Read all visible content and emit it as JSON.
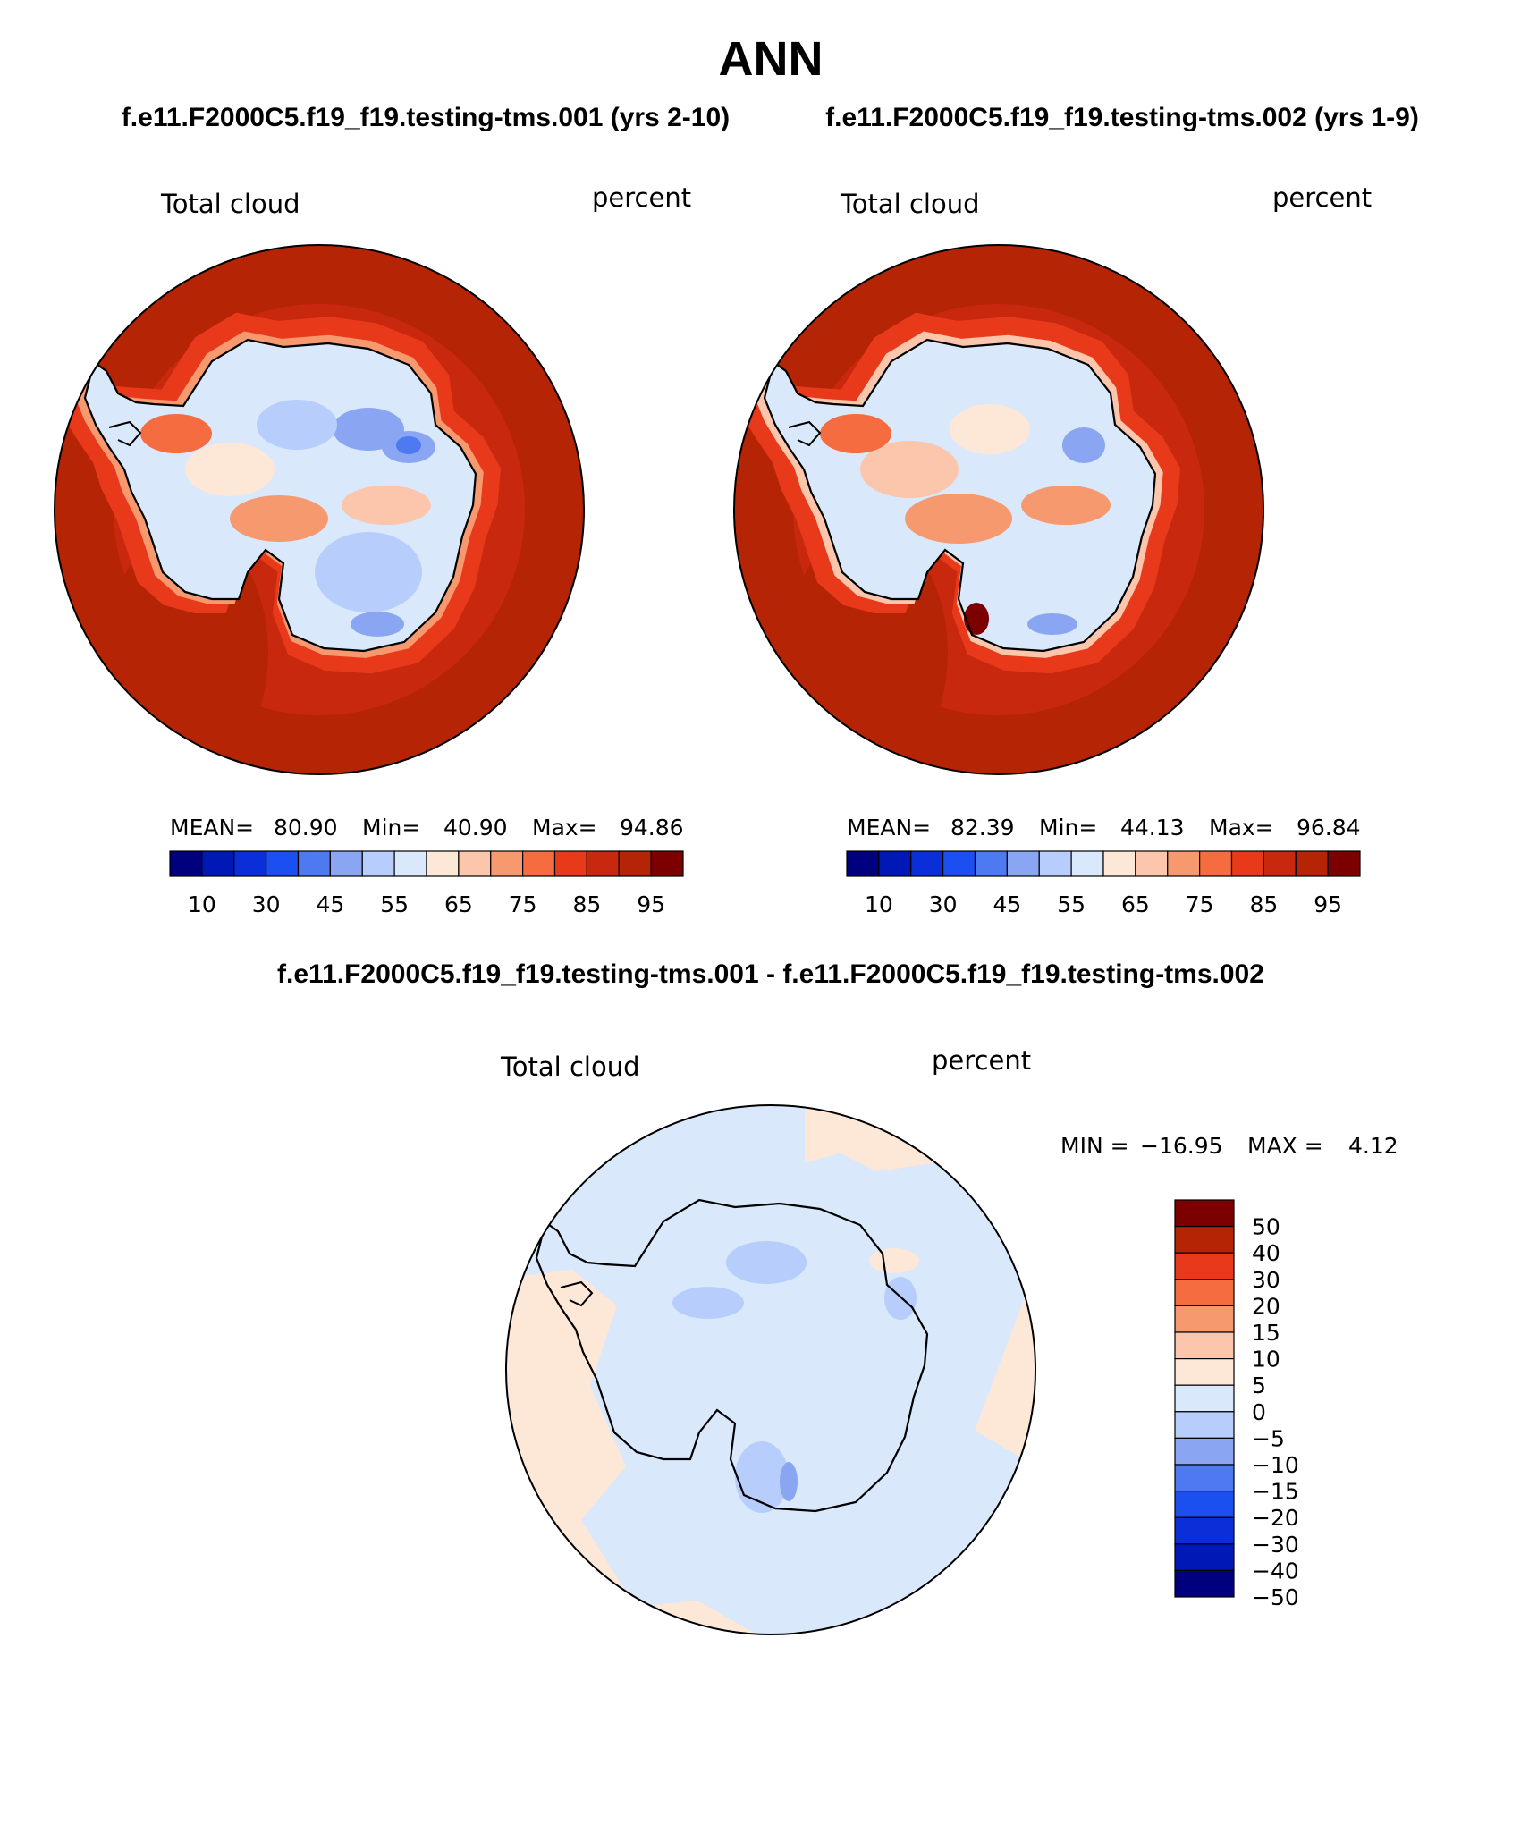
{
  "figure": {
    "title": "ANN",
    "left_case": "f.e11.F2000C5.f19_f19.testing-tms.001 (yrs 2-10)",
    "right_case": "f.e11.F2000C5.f19_f19.testing-tms.002 (yrs 1-9)",
    "diff_title": "f.e11.F2000C5.f19_f19.testing-tms.001 - f.e11.F2000C5.f19_f19.testing-tms.002"
  },
  "chart_data": [
    {
      "type": "heatmap",
      "projection": "south-polar-stereographic",
      "variable": "Total cloud",
      "units": "percent",
      "stats": {
        "mean_label": "MEAN=",
        "mean": "80.90",
        "min_label": "Min=",
        "min": "40.90",
        "max_label": "Max=",
        "max": "94.86"
      },
      "levels": [
        10,
        20,
        30,
        40,
        45,
        50,
        55,
        60,
        65,
        70,
        75,
        80,
        85,
        90,
        95
      ],
      "level_labels": [
        "10",
        "30",
        "45",
        "55",
        "65",
        "75",
        "85",
        "95"
      ],
      "colors": [
        "#00007f",
        "#0018b5",
        "#0a2ed8",
        "#1c4ff0",
        "#4d7af0",
        "#8aa6f3",
        "#b7cdfb",
        "#d9e8fb",
        "#fde8d8",
        "#fcc6ac",
        "#f7996f",
        "#f46c3f",
        "#e8391b",
        "#c8280d",
        "#b52404",
        "#7d0000"
      ],
      "ocean_color": "#c8280d",
      "ring_color": "#b52404",
      "coast_color": "#e8391b",
      "interior_color": "#d9e8fb"
    },
    {
      "type": "heatmap",
      "projection": "south-polar-stereographic",
      "variable": "Total cloud",
      "units": "percent",
      "stats": {
        "mean_label": "MEAN=",
        "mean": "82.39",
        "min_label": "Min=",
        "min": "44.13",
        "max_label": "Max=",
        "max": "96.84"
      },
      "levels": [
        10,
        20,
        30,
        40,
        45,
        50,
        55,
        60,
        65,
        70,
        75,
        80,
        85,
        90,
        95
      ],
      "level_labels": [
        "10",
        "30",
        "45",
        "55",
        "65",
        "75",
        "85",
        "95"
      ],
      "colors": [
        "#00007f",
        "#0018b5",
        "#0a2ed8",
        "#1c4ff0",
        "#4d7af0",
        "#8aa6f3",
        "#b7cdfb",
        "#d9e8fb",
        "#fde8d8",
        "#fcc6ac",
        "#f7996f",
        "#f46c3f",
        "#e8391b",
        "#c8280d",
        "#b52404",
        "#7d0000"
      ],
      "ocean_color": "#c8280d",
      "ring_color": "#b52404",
      "coast_color": "#e8391b",
      "interior_color": "#d9e8fb"
    },
    {
      "type": "heatmap",
      "projection": "south-polar-stereographic",
      "variable": "Total cloud",
      "units": "percent",
      "stats": {
        "min_label": "MIN =",
        "min": "−16.95",
        "max_label": "MAX =",
        "max": "4.12"
      },
      "levels": [
        -50,
        -40,
        -30,
        -20,
        -15,
        -10,
        -5,
        0,
        5,
        10,
        15,
        20,
        30,
        40,
        50
      ],
      "level_labels": [
        "50",
        "40",
        "30",
        "20",
        "15",
        "10",
        "5",
        "0",
        "−5",
        "−10",
        "−15",
        "−20",
        "−30",
        "−40",
        "−50"
      ],
      "colors": [
        "#7d0000",
        "#b52404",
        "#e8391b",
        "#f46c3f",
        "#f7996f",
        "#fcc6ac",
        "#fde8d8",
        "#d9e8fb",
        "#b7cdfb",
        "#8aa6f3",
        "#4d7af0",
        "#1c4ff0",
        "#0a2ed8",
        "#0018b5",
        "#00007f"
      ],
      "background_color": "#d9e8fb",
      "positive_color": "#fde8d8",
      "negative_color": "#b7cdfb"
    }
  ]
}
